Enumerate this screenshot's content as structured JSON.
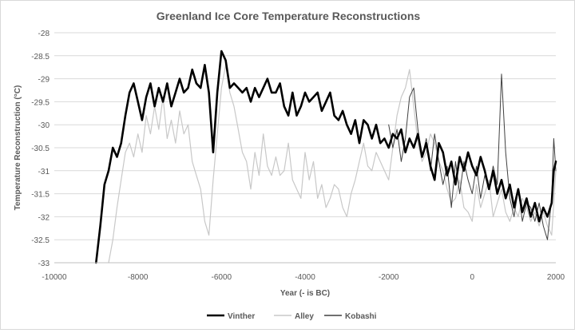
{
  "chart_data": {
    "type": "line",
    "title": "Greenland Ice Core Temperature Reconstructions",
    "xlabel": "Year (- is BC)",
    "ylabel": "Temperature Reconstruction (°C)",
    "xlim": [
      -10000,
      2000
    ],
    "ylim": [
      -33,
      -28
    ],
    "x_ticks": [
      -10000,
      -8000,
      -6000,
      -4000,
      -2000,
      0,
      2000
    ],
    "y_ticks": [
      -28,
      -28.5,
      -29,
      -29.5,
      -30,
      -30.5,
      -31,
      -31.5,
      -32,
      -32.5,
      -33
    ],
    "grid": "horizontal",
    "legend_position": "bottom",
    "series": [
      {
        "name": "Vinther",
        "color": "#000000",
        "width": 2.6,
        "x": [
          -9000,
          -8900,
          -8800,
          -8700,
          -8600,
          -8500,
          -8400,
          -8300,
          -8200,
          -8100,
          -8000,
          -7900,
          -7800,
          -7700,
          -7600,
          -7500,
          -7400,
          -7300,
          -7200,
          -7100,
          -7000,
          -6900,
          -6800,
          -6700,
          -6600,
          -6500,
          -6400,
          -6300,
          -6200,
          -6100,
          -6000,
          -5900,
          -5800,
          -5700,
          -5600,
          -5500,
          -5400,
          -5300,
          -5200,
          -5100,
          -5000,
          -4900,
          -4800,
          -4700,
          -4600,
          -4500,
          -4400,
          -4300,
          -4200,
          -4100,
          -4000,
          -3900,
          -3800,
          -3700,
          -3600,
          -3500,
          -3400,
          -3300,
          -3200,
          -3100,
          -3000,
          -2900,
          -2800,
          -2700,
          -2600,
          -2500,
          -2400,
          -2300,
          -2200,
          -2100,
          -2000,
          -1900,
          -1800,
          -1700,
          -1600,
          -1500,
          -1400,
          -1300,
          -1200,
          -1100,
          -1000,
          -900,
          -800,
          -700,
          -600,
          -500,
          -400,
          -300,
          -200,
          -100,
          0,
          100,
          200,
          300,
          400,
          500,
          600,
          700,
          800,
          900,
          1000,
          1100,
          1200,
          1300,
          1400,
          1500,
          1600,
          1700,
          1800,
          1900,
          1950,
          2000
        ],
        "values": [
          -33,
          -32.2,
          -31.3,
          -31,
          -30.5,
          -30.7,
          -30.4,
          -29.8,
          -29.3,
          -29.1,
          -29.5,
          -29.9,
          -29.4,
          -29.1,
          -29.6,
          -29.2,
          -29.5,
          -29.1,
          -29.6,
          -29.3,
          -29,
          -29.3,
          -29.2,
          -28.8,
          -29.1,
          -29.2,
          -28.7,
          -29.3,
          -30.6,
          -29.3,
          -28.4,
          -28.6,
          -29.2,
          -29.1,
          -29.2,
          -29.3,
          -29.2,
          -29.5,
          -29.2,
          -29.4,
          -29.2,
          -29,
          -29.3,
          -29.3,
          -29.1,
          -29.6,
          -29.8,
          -29.3,
          -29.8,
          -29.6,
          -29.3,
          -29.5,
          -29.4,
          -29.3,
          -29.7,
          -29.5,
          -29.3,
          -29.8,
          -29.9,
          -29.7,
          -30,
          -30.2,
          -29.9,
          -30.4,
          -29.9,
          -30,
          -30.3,
          -30,
          -30.4,
          -30.3,
          -30.5,
          -30.2,
          -30.3,
          -30.1,
          -30.6,
          -30.3,
          -30.5,
          -30.2,
          -30.7,
          -30.4,
          -30.9,
          -31.2,
          -30.4,
          -30.6,
          -31.1,
          -30.8,
          -31.3,
          -30.7,
          -31,
          -30.6,
          -30.9,
          -31.1,
          -30.7,
          -31,
          -31.4,
          -31,
          -31.5,
          -31.2,
          -31.6,
          -31.3,
          -31.8,
          -31.4,
          -31.9,
          -31.6,
          -32,
          -31.7,
          -32.1,
          -31.8,
          -32,
          -31.7,
          -31,
          -30.8
        ]
      },
      {
        "name": "Alley",
        "color": "#c8c8c8",
        "width": 1.2,
        "x": [
          -8700,
          -8600,
          -8500,
          -8400,
          -8300,
          -8200,
          -8100,
          -8000,
          -7900,
          -7800,
          -7700,
          -7600,
          -7500,
          -7400,
          -7300,
          -7200,
          -7100,
          -7000,
          -6900,
          -6800,
          -6700,
          -6600,
          -6500,
          -6400,
          -6300,
          -6200,
          -6100,
          -6000,
          -5900,
          -5800,
          -5700,
          -5600,
          -5500,
          -5400,
          -5300,
          -5200,
          -5100,
          -5000,
          -4900,
          -4800,
          -4700,
          -4600,
          -4500,
          -4400,
          -4300,
          -4200,
          -4100,
          -4000,
          -3900,
          -3800,
          -3700,
          -3600,
          -3500,
          -3400,
          -3300,
          -3200,
          -3100,
          -3000,
          -2900,
          -2800,
          -2700,
          -2600,
          -2500,
          -2400,
          -2300,
          -2200,
          -2100,
          -2000,
          -1900,
          -1800,
          -1700,
          -1600,
          -1500,
          -1400,
          -1300,
          -1200,
          -1100,
          -1000,
          -900,
          -800,
          -700,
          -600,
          -500,
          -400,
          -300,
          -200,
          -100,
          0,
          100,
          200,
          300,
          400,
          500,
          600,
          700,
          800,
          900,
          1000,
          1100,
          1200,
          1300,
          1400,
          1500,
          1600,
          1700,
          1800,
          1900,
          2000
        ],
        "values": [
          -33,
          -32.5,
          -31.8,
          -31.2,
          -30.6,
          -30.4,
          -30.7,
          -30.2,
          -30.6,
          -29.8,
          -30.2,
          -29.6,
          -30.1,
          -29.4,
          -30.3,
          -29.9,
          -30.4,
          -29.7,
          -30.2,
          -30,
          -30.8,
          -31.1,
          -31.4,
          -32.1,
          -32.4,
          -31.2,
          -30.2,
          -29.2,
          -28.7,
          -29.3,
          -29.6,
          -30.1,
          -30.6,
          -30.8,
          -31.4,
          -30.6,
          -31.1,
          -30.2,
          -30.9,
          -31.1,
          -30.7,
          -31.1,
          -31,
          -30.4,
          -31.2,
          -31.4,
          -31.6,
          -30.6,
          -31.2,
          -30.8,
          -31.6,
          -31.3,
          -31.8,
          -31.6,
          -31.3,
          -31.4,
          -31.8,
          -32,
          -31.5,
          -31.2,
          -30.8,
          -30.4,
          -30.9,
          -31,
          -30.6,
          -30.8,
          -31,
          -31.2,
          -30.5,
          -29.8,
          -29.4,
          -29.2,
          -28.8,
          -29.6,
          -30.4,
          -30.8,
          -30.6,
          -30.2,
          -30.4,
          -30.8,
          -31,
          -31.4,
          -31.7,
          -31.6,
          -31.2,
          -31.8,
          -31.9,
          -32.1,
          -31.3,
          -31.8,
          -31.5,
          -31.2,
          -32,
          -31.7,
          -31.4,
          -31.9,
          -32.1,
          -31.8,
          -32,
          -31.6,
          -31.8,
          -32.1,
          -31.9,
          -32.2,
          -31.9,
          -32.2,
          -32.4,
          -31
        ]
      },
      {
        "name": "Kobashi",
        "color": "#404040",
        "width": 1.0,
        "x": [
          -2000,
          -1900,
          -1800,
          -1700,
          -1600,
          -1500,
          -1400,
          -1300,
          -1200,
          -1100,
          -1000,
          -900,
          -800,
          -700,
          -600,
          -500,
          -400,
          -300,
          -200,
          -100,
          0,
          100,
          200,
          300,
          400,
          500,
          600,
          700,
          800,
          900,
          1000,
          1100,
          1200,
          1300,
          1400,
          1500,
          1600,
          1700,
          1800,
          1900,
          1950,
          2000
        ],
        "values": [
          -30,
          -30.5,
          -30.1,
          -30.8,
          -30.3,
          -29.4,
          -29.2,
          -30.1,
          -30.7,
          -30.3,
          -31,
          -30.2,
          -30.8,
          -31.3,
          -30.9,
          -31.8,
          -30.8,
          -31.5,
          -30.8,
          -31.2,
          -31.5,
          -30.9,
          -31.6,
          -31.1,
          -31.4,
          -30.9,
          -31.3,
          -28.9,
          -30.6,
          -31.6,
          -32,
          -31.4,
          -32.1,
          -31.7,
          -31.8,
          -32.1,
          -31.7,
          -32.2,
          -32.5,
          -31.6,
          -30.3,
          -31
        ]
      }
    ]
  }
}
